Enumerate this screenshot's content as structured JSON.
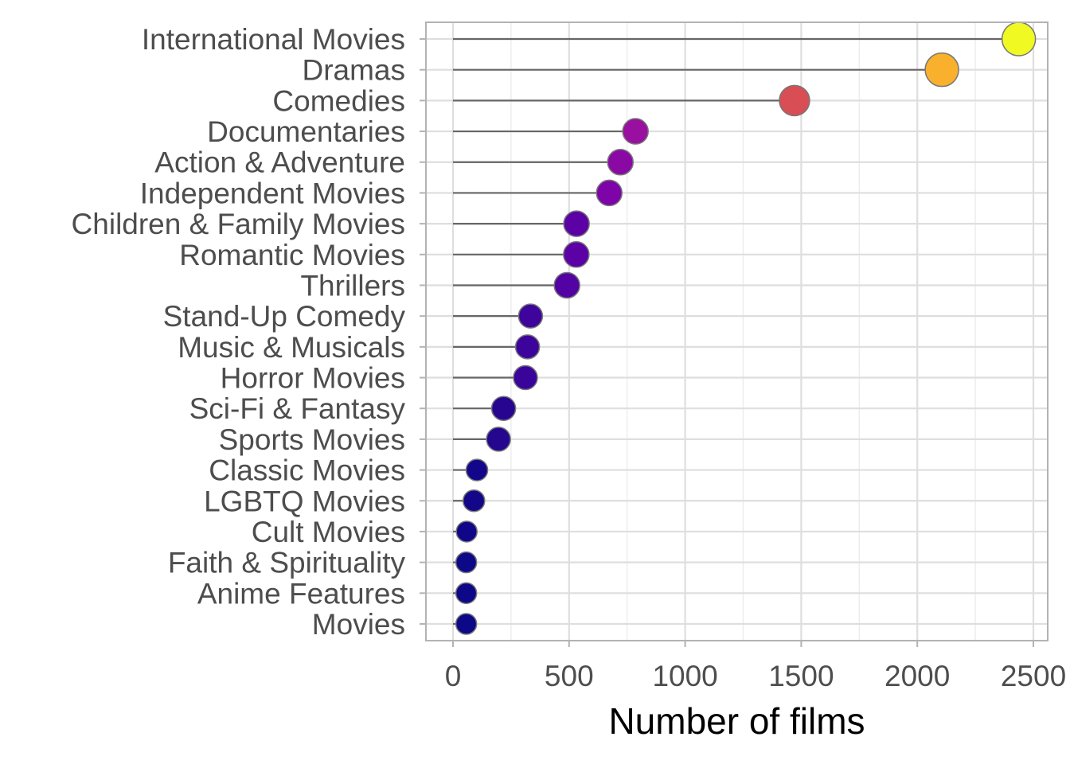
{
  "chart_data": {
    "type": "lollipop",
    "orientation": "horizontal",
    "title": "",
    "xlabel": "Number of films",
    "ylabel": "",
    "xlim": [
      -115,
      2540
    ],
    "x_ticks": [
      0,
      500,
      1000,
      1500,
      2000,
      2500
    ],
    "x_tick_labels": [
      "0",
      "500",
      "1000",
      "1500",
      "2000",
      "2500"
    ],
    "grid": true,
    "legend": "none",
    "stem_color": "#666666",
    "point_outline": "#777777",
    "categories": [
      "International Movies",
      "Dramas",
      "Comedies",
      "Documentaries",
      "Action & Adventure",
      "Independent Movies",
      "Children & Family Movies",
      "Romantic Movies",
      "Thrillers",
      "Stand-Up Comedy",
      "Music & Musicals",
      "Horror Movies",
      "Sci-Fi & Fantasy",
      "Sports Movies",
      "Classic Movies",
      "LGBTQ Movies",
      "Cult Movies",
      "Faith & Spirituality",
      "Anime Features",
      "Movies"
    ],
    "values": [
      2437,
      2106,
      1471,
      786,
      721,
      673,
      532,
      531,
      491,
      334,
      321,
      312,
      218,
      196,
      103,
      90,
      59,
      57,
      57,
      57
    ],
    "colors": [
      "#f0f921",
      "#f9b02d",
      "#d94d54",
      "#990fa0",
      "#8a09a5",
      "#7e03a8",
      "#5c01a6",
      "#5c01a6",
      "#5302a3",
      "#3e049c",
      "#3c049b",
      "#3a049a",
      "#270591",
      "#24068f",
      "#13068b",
      "#130689",
      "#0f0787",
      "#0d0887",
      "#0d0887",
      "#0d0887"
    ],
    "sizes": [
      21,
      21,
      19,
      16,
      16,
      16,
      16,
      16,
      16,
      15,
      15,
      15,
      15,
      15,
      13.5,
      13.5,
      13,
      13,
      13,
      13
    ],
    "stem_start": 0
  }
}
